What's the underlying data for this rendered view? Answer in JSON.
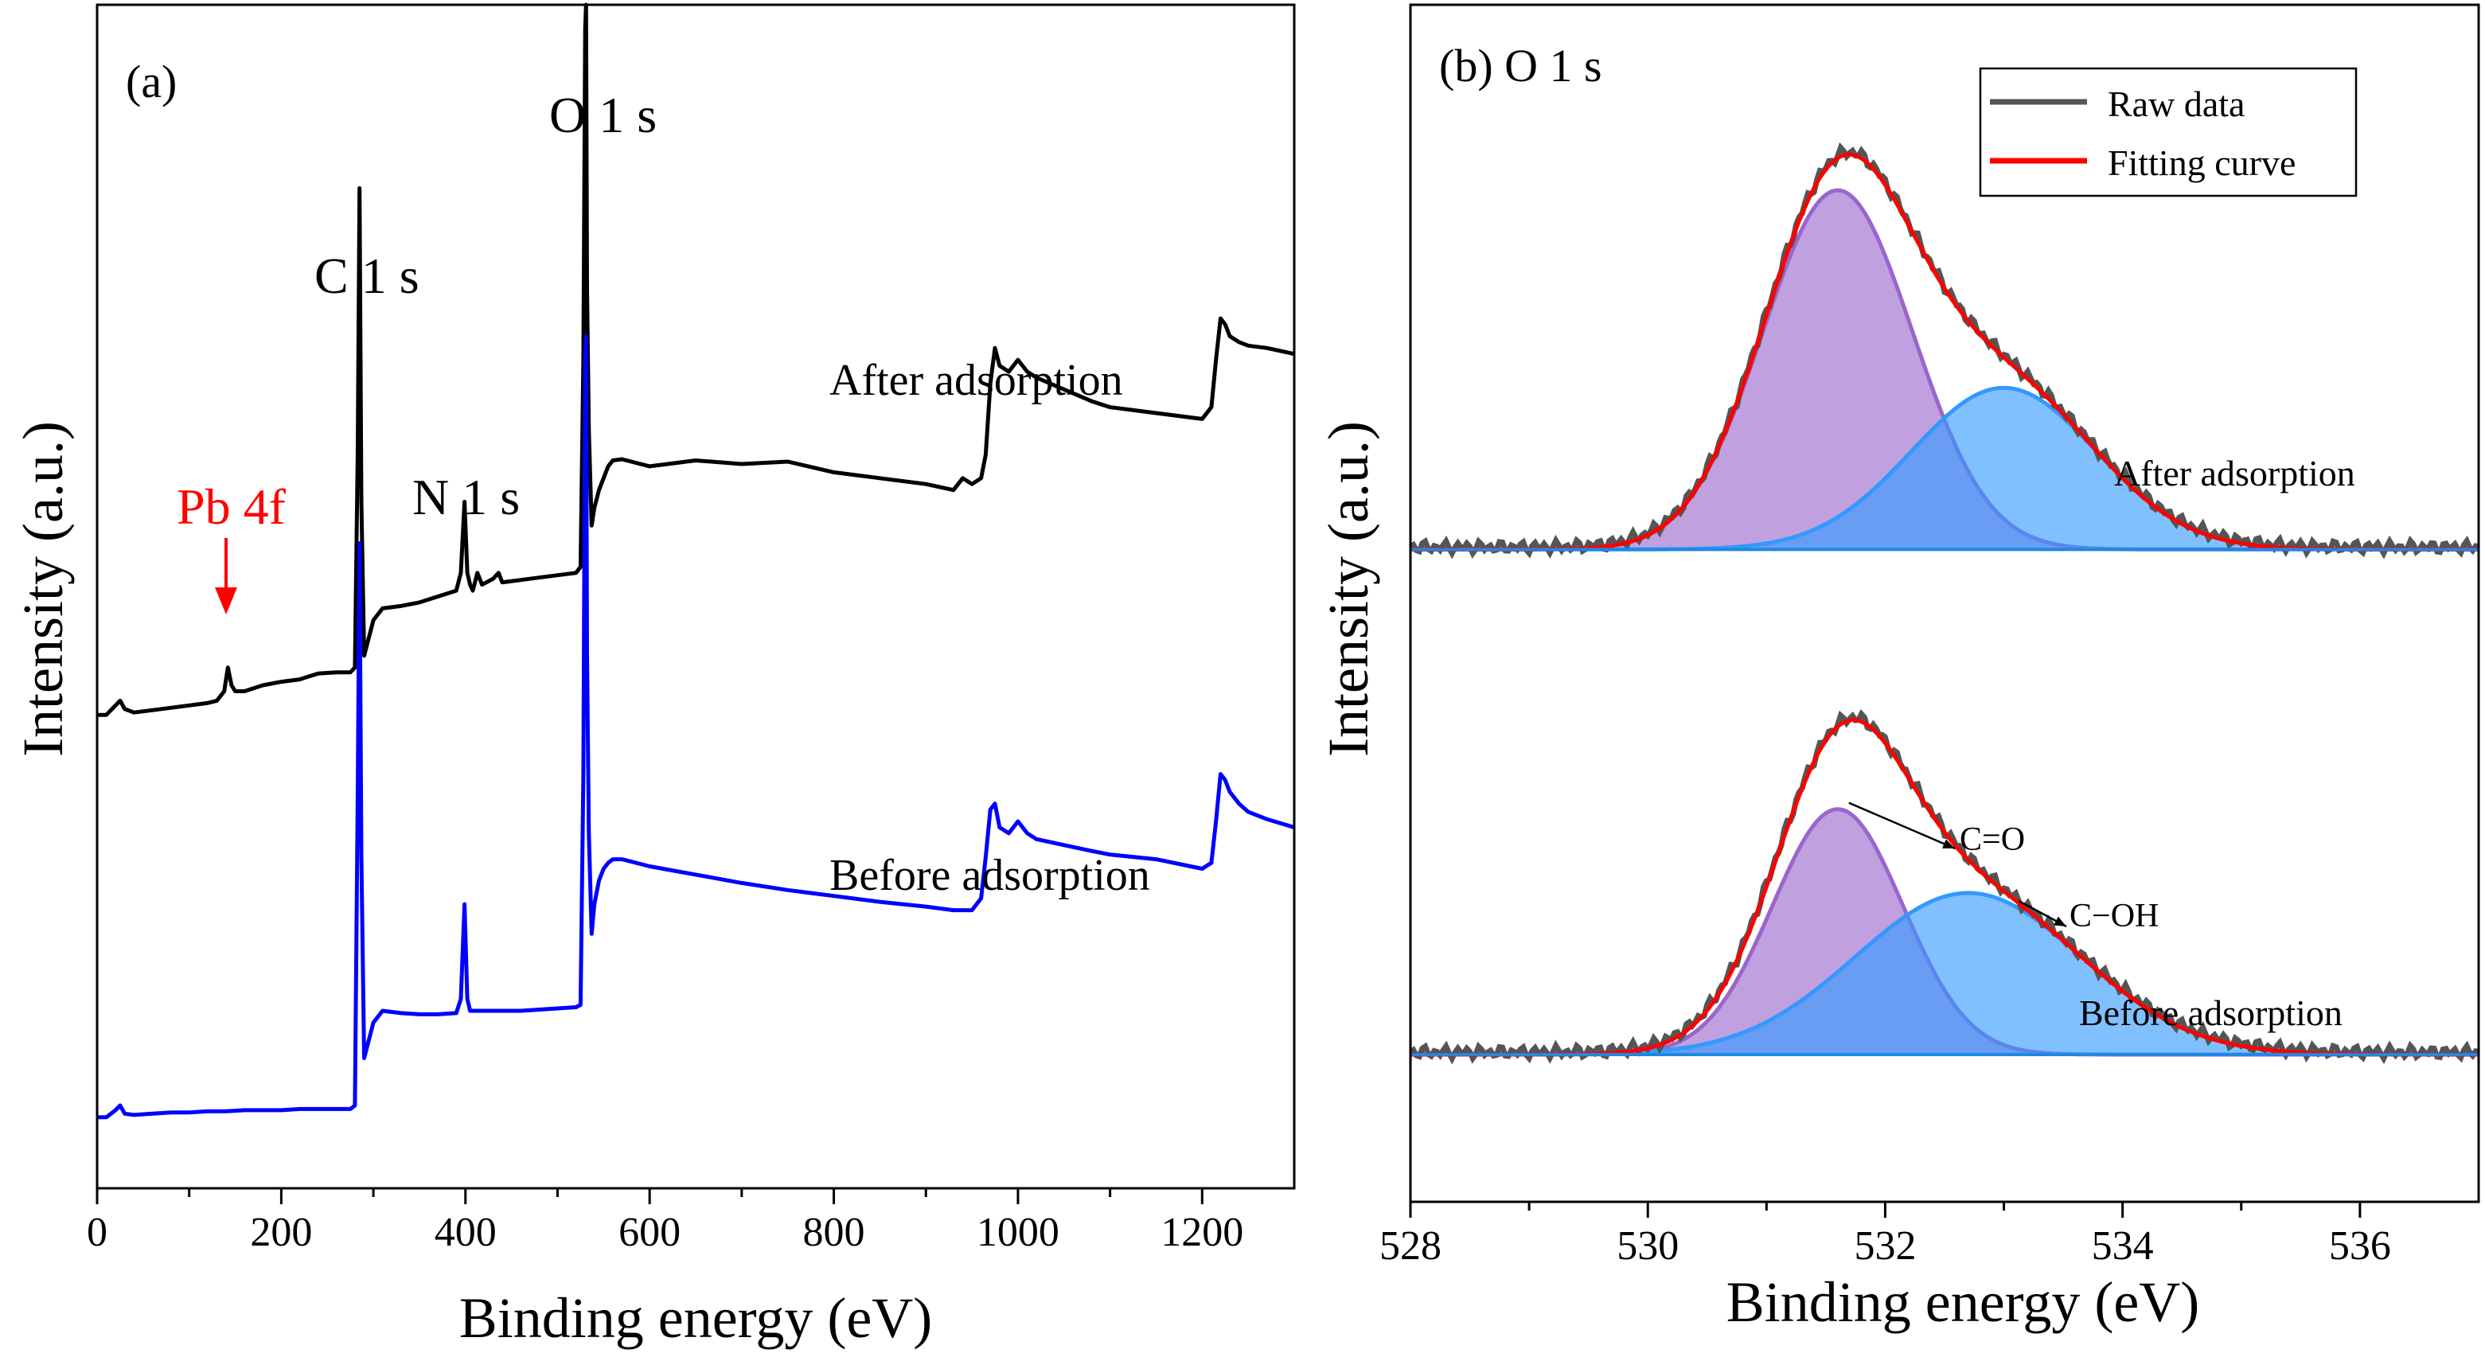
{
  "chart_data": [
    {
      "type": "line",
      "panel_label": "(a)",
      "xlabel": "Binding energy (eV)",
      "ylabel": "Intensity (a.u.)",
      "xlim": [
        0,
        1300
      ],
      "ylim": [
        0,
        1
      ],
      "x_ticks": [
        "0",
        "200",
        "400",
        "600",
        "800",
        "1000",
        "1200"
      ],
      "series": [
        {
          "name": "After adsorption",
          "color": "#000000",
          "x": [
            0,
            10,
            20,
            25,
            30,
            40,
            60,
            80,
            100,
            120,
            130,
            138,
            142,
            146,
            150,
            160,
            180,
            200,
            220,
            240,
            260,
            275,
            280,
            283,
            285,
            287,
            290,
            295,
            300,
            310,
            330,
            350,
            370,
            390,
            395,
            399,
            402,
            405,
            408,
            413,
            418,
            430,
            436,
            440,
            460,
            480,
            500,
            520,
            525,
            528,
            530,
            531,
            532,
            534,
            537,
            540,
            545,
            550,
            555,
            560,
            570,
            600,
            650,
            700,
            750,
            800,
            850,
            900,
            930,
            940,
            950,
            960,
            965,
            970,
            975,
            980,
            990,
            1000,
            1010,
            1020,
            1050,
            1080,
            1100,
            1150,
            1200,
            1210,
            1215,
            1220,
            1225,
            1230,
            1240,
            1250,
            1270,
            1300
          ],
          "values": [
            0.4,
            0.4,
            0.408,
            0.412,
            0.405,
            0.402,
            0.404,
            0.406,
            0.408,
            0.41,
            0.412,
            0.42,
            0.44,
            0.425,
            0.42,
            0.42,
            0.425,
            0.428,
            0.43,
            0.435,
            0.436,
            0.436,
            0.44,
            0.62,
            0.845,
            0.58,
            0.45,
            0.465,
            0.48,
            0.49,
            0.492,
            0.495,
            0.5,
            0.505,
            0.52,
            0.58,
            0.52,
            0.51,
            0.505,
            0.52,
            0.51,
            0.515,
            0.52,
            0.512,
            0.514,
            0.516,
            0.518,
            0.52,
            0.525,
            0.7,
            0.98,
            1.0,
            0.76,
            0.64,
            0.56,
            0.575,
            0.59,
            0.6,
            0.61,
            0.615,
            0.616,
            0.61,
            0.615,
            0.612,
            0.614,
            0.605,
            0.6,
            0.595,
            0.59,
            0.6,
            0.595,
            0.6,
            0.62,
            0.68,
            0.71,
            0.695,
            0.69,
            0.7,
            0.69,
            0.685,
            0.675,
            0.665,
            0.66,
            0.655,
            0.65,
            0.66,
            0.7,
            0.735,
            0.73,
            0.72,
            0.715,
            0.712,
            0.71,
            0.705
          ]
        },
        {
          "name": "Before adsorption",
          "color": "#0000ff",
          "x": [
            0,
            10,
            20,
            25,
            30,
            40,
            60,
            80,
            100,
            120,
            140,
            160,
            180,
            200,
            220,
            240,
            260,
            275,
            280,
            283,
            285,
            287,
            290,
            295,
            300,
            310,
            330,
            350,
            370,
            390,
            395,
            399,
            402,
            405,
            410,
            430,
            460,
            480,
            500,
            520,
            525,
            528,
            530,
            531,
            532,
            534,
            537,
            540,
            545,
            550,
            555,
            560,
            570,
            600,
            650,
            700,
            750,
            800,
            850,
            900,
            930,
            940,
            950,
            960,
            965,
            970,
            975,
            980,
            990,
            1000,
            1010,
            1020,
            1050,
            1080,
            1100,
            1150,
            1200,
            1210,
            1215,
            1220,
            1225,
            1230,
            1240,
            1250,
            1270,
            1300
          ],
          "values": [
            0.06,
            0.06,
            0.066,
            0.07,
            0.063,
            0.062,
            0.063,
            0.064,
            0.064,
            0.065,
            0.065,
            0.066,
            0.066,
            0.066,
            0.067,
            0.067,
            0.067,
            0.067,
            0.07,
            0.33,
            0.545,
            0.28,
            0.11,
            0.125,
            0.14,
            0.15,
            0.148,
            0.147,
            0.147,
            0.148,
            0.16,
            0.24,
            0.16,
            0.15,
            0.15,
            0.15,
            0.15,
            0.151,
            0.152,
            0.153,
            0.155,
            0.35,
            0.7,
            0.72,
            0.45,
            0.3,
            0.215,
            0.24,
            0.26,
            0.27,
            0.275,
            0.278,
            0.278,
            0.272,
            0.265,
            0.258,
            0.252,
            0.247,
            0.242,
            0.238,
            0.235,
            0.235,
            0.235,
            0.245,
            0.28,
            0.32,
            0.325,
            0.305,
            0.3,
            0.31,
            0.3,
            0.295,
            0.29,
            0.285,
            0.282,
            0.278,
            0.27,
            0.275,
            0.31,
            0.35,
            0.345,
            0.335,
            0.325,
            0.318,
            0.312,
            0.305
          ]
        }
      ],
      "annotations": [
        {
          "text": "Pb 4f",
          "color": "#ff0000",
          "x": 140
        },
        {
          "text": "C 1 s",
          "x": 285
        },
        {
          "text": "N 1 s",
          "x": 400
        },
        {
          "text": "O 1 s",
          "x": 532
        },
        {
          "text": "After adsorption"
        },
        {
          "text": "Before adsorption"
        }
      ]
    },
    {
      "type": "area",
      "panel_label": "(b) O 1 s",
      "xlabel": "Binding energy (eV)",
      "ylabel": "Intensity (a.u.)",
      "xlim": [
        528,
        537
      ],
      "ylim": [
        0,
        1
      ],
      "x_ticks": [
        "528",
        "530",
        "532",
        "534",
        "536"
      ],
      "legend": {
        "position": "top-right",
        "entries": [
          {
            "label": "Raw data",
            "color": "#555555"
          },
          {
            "label": "Fitting curve",
            "color": "#ff0000"
          }
        ]
      },
      "spectra": [
        {
          "name": "After adsorption",
          "baseline": 0.545,
          "components": [
            {
              "label": "C=O",
              "center": 531.6,
              "height": 0.3,
              "sigma": 0.63,
              "color": "#9966cc"
            },
            {
              "label": "C−OH",
              "center": 533.0,
              "height": 0.135,
              "sigma": 0.78,
              "color": "#3399ff"
            }
          ]
        },
        {
          "name": "Before adsorption",
          "baseline": 0.123,
          "components": [
            {
              "label": "C=O",
              "center": 531.6,
              "height": 0.205,
              "sigma": 0.55,
              "color": "#9966cc"
            },
            {
              "label": "C−OH",
              "center": 532.7,
              "height": 0.135,
              "sigma": 0.95,
              "color": "#3399ff"
            }
          ]
        }
      ],
      "annotations": [
        {
          "text": "After adsorption"
        },
        {
          "text": "Before adsorption"
        },
        {
          "text": "C=O",
          "component": "C=O"
        },
        {
          "text": "C−OH",
          "component": "C−OH"
        }
      ]
    }
  ]
}
